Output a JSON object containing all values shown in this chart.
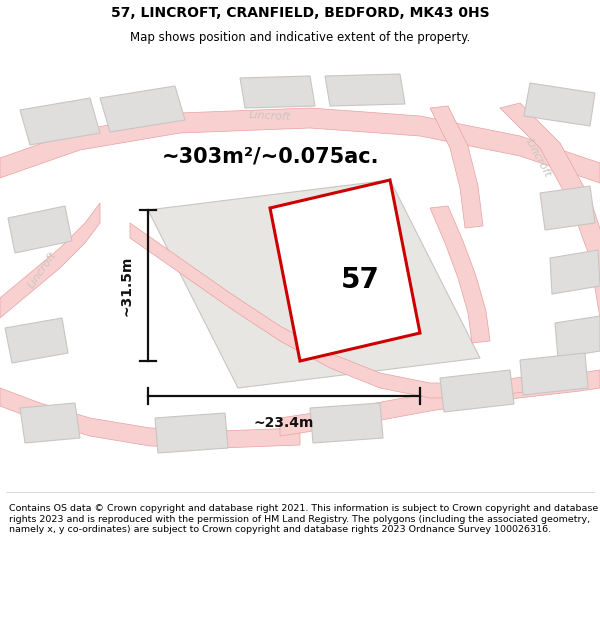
{
  "title": "57, LINCROFT, CRANFIELD, BEDFORD, MK43 0HS",
  "subtitle": "Map shows position and indicative extent of the property.",
  "footer": "Contains OS data © Crown copyright and database right 2021. This information is subject to Crown copyright and database rights 2023 and is reproduced with the permission of HM Land Registry. The polygons (including the associated geometry, namely x, y co-ordinates) are subject to Crown copyright and database rights 2023 Ordnance Survey 100026316.",
  "map_bg": "#f7f5f2",
  "road_fill": "#f9d0d0",
  "road_edge": "#e8a0a0",
  "building_fill": "#e0dedd",
  "building_edge": "#c8c5c2",
  "property_color": "#cc0000",
  "dim_color": "#111111",
  "area_text": "~303m²/~0.075ac.",
  "label_57": "57",
  "dim_width": "~23.4m",
  "dim_height": "~31.5m",
  "street_color": "#c8c5c2",
  "street_label_top": "Lincroft",
  "street_label_right": "Lincroft",
  "street_label_left": "Lincroft"
}
